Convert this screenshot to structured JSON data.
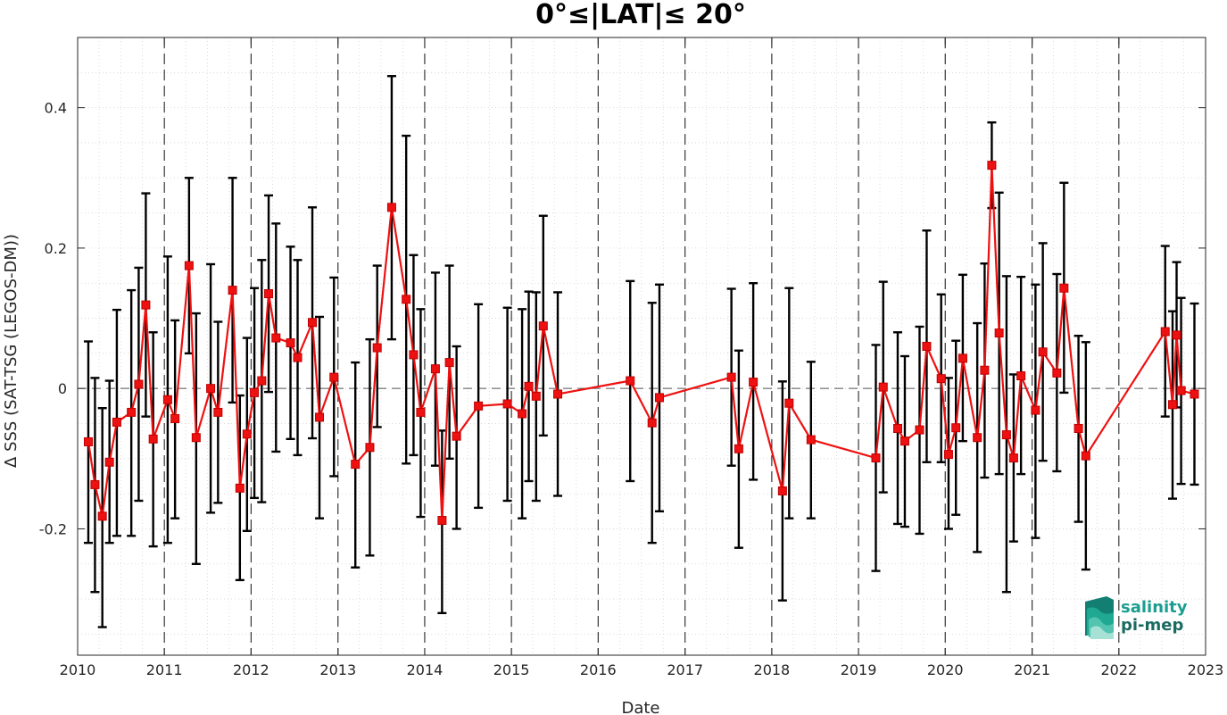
{
  "chart_data": {
    "type": "line",
    "title": "0°≤|LAT|≤ 20°",
    "xlabel": "Date",
    "ylabel": "Δ SSS (SAT-TSG (LEGOS-DM))",
    "xlim": [
      "2010-01-01",
      "2023-01-01"
    ],
    "ylim": [
      -0.38,
      0.5
    ],
    "x_tick_labels": [
      "2010",
      "2011",
      "2012",
      "2013",
      "2014",
      "2015",
      "2016",
      "2017",
      "2018",
      "2019",
      "2020",
      "2021",
      "2022",
      "2023"
    ],
    "y_ticks": [
      -0.2,
      0,
      0.2,
      0.4
    ],
    "y_tick_labels": [
      "-0.2",
      "0",
      "0.2",
      "0.4"
    ],
    "grid": "dotted",
    "reference_line": 0,
    "year_separators": [
      "2011",
      "2012",
      "2013",
      "2014",
      "2015",
      "2016",
      "2017",
      "2018",
      "2019",
      "2020",
      "2021",
      "2022"
    ],
    "series": [
      {
        "color": "#ee1111",
        "marker": "square",
        "errorbar_color": "#000000",
        "points": [
          {
            "x": "2010-02-15",
            "y": -0.076,
            "lo": -0.22,
            "hi": 0.067
          },
          {
            "x": "2010-03-15",
            "y": -0.137,
            "lo": -0.29,
            "hi": 0.015
          },
          {
            "x": "2010-04-15",
            "y": -0.182,
            "lo": -0.34,
            "hi": -0.028
          },
          {
            "x": "2010-05-15",
            "y": -0.105,
            "lo": -0.22,
            "hi": 0.011
          },
          {
            "x": "2010-06-15",
            "y": -0.048,
            "lo": -0.21,
            "hi": 0.112
          },
          {
            "x": "2010-08-15",
            "y": -0.034,
            "lo": -0.21,
            "hi": 0.14
          },
          {
            "x": "2010-09-15",
            "y": 0.006,
            "lo": -0.16,
            "hi": 0.172
          },
          {
            "x": "2010-10-15",
            "y": 0.119,
            "lo": -0.04,
            "hi": 0.278
          },
          {
            "x": "2010-11-15",
            "y": -0.072,
            "lo": -0.225,
            "hi": 0.08
          },
          {
            "x": "2011-01-15",
            "y": -0.016,
            "lo": -0.22,
            "hi": 0.188
          },
          {
            "x": "2011-02-15",
            "y": -0.043,
            "lo": -0.185,
            "hi": 0.097
          },
          {
            "x": "2011-04-15",
            "y": 0.175,
            "lo": 0.05,
            "hi": 0.3
          },
          {
            "x": "2011-05-15",
            "y": -0.07,
            "lo": -0.25,
            "hi": 0.107
          },
          {
            "x": "2011-07-15",
            "y": 0.0,
            "lo": -0.177,
            "hi": 0.177
          },
          {
            "x": "2011-08-15",
            "y": -0.034,
            "lo": -0.163,
            "hi": 0.095
          },
          {
            "x": "2011-10-15",
            "y": 0.14,
            "lo": -0.02,
            "hi": 0.3
          },
          {
            "x": "2011-11-15",
            "y": -0.142,
            "lo": -0.273,
            "hi": -0.01
          },
          {
            "x": "2011-12-15",
            "y": -0.065,
            "lo": -0.203,
            "hi": 0.072
          },
          {
            "x": "2012-01-15",
            "y": -0.006,
            "lo": -0.156,
            "hi": 0.143
          },
          {
            "x": "2012-02-15",
            "y": 0.011,
            "lo": -0.162,
            "hi": 0.183
          },
          {
            "x": "2012-03-15",
            "y": 0.135,
            "lo": -0.005,
            "hi": 0.275
          },
          {
            "x": "2012-04-15",
            "y": 0.072,
            "lo": -0.09,
            "hi": 0.235
          },
          {
            "x": "2012-06-15",
            "y": 0.065,
            "lo": -0.072,
            "hi": 0.202
          },
          {
            "x": "2012-07-15",
            "y": 0.044,
            "lo": -0.095,
            "hi": 0.183
          },
          {
            "x": "2012-09-15",
            "y": 0.094,
            "lo": -0.071,
            "hi": 0.258
          },
          {
            "x": "2012-10-15",
            "y": -0.041,
            "lo": -0.185,
            "hi": 0.102
          },
          {
            "x": "2012-12-15",
            "y": 0.016,
            "lo": -0.125,
            "hi": 0.158
          },
          {
            "x": "2013-03-15",
            "y": -0.108,
            "lo": -0.255,
            "hi": 0.037
          },
          {
            "x": "2013-05-15",
            "y": -0.084,
            "lo": -0.238,
            "hi": 0.07
          },
          {
            "x": "2013-06-15",
            "y": 0.058,
            "lo": -0.055,
            "hi": 0.175
          },
          {
            "x": "2013-08-15",
            "y": 0.258,
            "lo": 0.07,
            "hi": 0.445
          },
          {
            "x": "2013-10-15",
            "y": 0.127,
            "lo": -0.107,
            "hi": 0.36
          },
          {
            "x": "2013-11-15",
            "y": 0.048,
            "lo": -0.095,
            "hi": 0.19
          },
          {
            "x": "2013-12-15",
            "y": -0.034,
            "lo": -0.183,
            "hi": 0.113
          },
          {
            "x": "2014-02-15",
            "y": 0.028,
            "lo": -0.11,
            "hi": 0.165
          },
          {
            "x": "2014-03-15",
            "y": -0.188,
            "lo": -0.32,
            "hi": -0.06
          },
          {
            "x": "2014-04-15",
            "y": 0.037,
            "lo": -0.1,
            "hi": 0.175
          },
          {
            "x": "2014-05-15",
            "y": -0.068,
            "lo": -0.2,
            "hi": 0.06
          },
          {
            "x": "2014-08-15",
            "y": -0.025,
            "lo": -0.17,
            "hi": 0.12
          },
          {
            "x": "2014-12-15",
            "y": -0.022,
            "lo": -0.16,
            "hi": 0.115
          },
          {
            "x": "2015-02-15",
            "y": -0.036,
            "lo": -0.185,
            "hi": 0.113
          },
          {
            "x": "2015-03-15",
            "y": 0.003,
            "lo": -0.132,
            "hi": 0.138
          },
          {
            "x": "2015-04-15",
            "y": -0.011,
            "lo": -0.16,
            "hi": 0.137
          },
          {
            "x": "2015-05-15",
            "y": 0.089,
            "lo": -0.067,
            "hi": 0.246
          },
          {
            "x": "2015-07-15",
            "y": -0.008,
            "lo": -0.153,
            "hi": 0.137
          },
          {
            "x": "2016-05-15",
            "y": 0.011,
            "lo": -0.132,
            "hi": 0.153
          },
          {
            "x": "2016-08-15",
            "y": -0.049,
            "lo": -0.22,
            "hi": 0.122
          },
          {
            "x": "2016-09-15",
            "y": -0.013,
            "lo": -0.175,
            "hi": 0.148
          },
          {
            "x": "2017-07-15",
            "y": 0.016,
            "lo": -0.11,
            "hi": 0.142
          },
          {
            "x": "2017-08-15",
            "y": -0.086,
            "lo": -0.227,
            "hi": 0.054
          },
          {
            "x": "2017-10-15",
            "y": 0.009,
            "lo": -0.13,
            "hi": 0.15
          },
          {
            "x": "2018-02-15",
            "y": -0.146,
            "lo": -0.302,
            "hi": 0.01
          },
          {
            "x": "2018-03-15",
            "y": -0.021,
            "lo": -0.185,
            "hi": 0.143
          },
          {
            "x": "2018-06-15",
            "y": -0.073,
            "lo": -0.185,
            "hi": 0.038
          },
          {
            "x": "2019-03-15",
            "y": -0.099,
            "lo": -0.26,
            "hi": 0.062
          },
          {
            "x": "2019-04-15",
            "y": 0.002,
            "lo": -0.148,
            "hi": 0.152
          },
          {
            "x": "2019-06-15",
            "y": -0.057,
            "lo": -0.193,
            "hi": 0.08
          },
          {
            "x": "2019-07-15",
            "y": -0.075,
            "lo": -0.197,
            "hi": 0.046
          },
          {
            "x": "2019-09-15",
            "y": -0.059,
            "lo": -0.207,
            "hi": 0.088
          },
          {
            "x": "2019-10-15",
            "y": 0.06,
            "lo": -0.105,
            "hi": 0.225
          },
          {
            "x": "2019-12-15",
            "y": 0.014,
            "lo": -0.105,
            "hi": 0.134
          },
          {
            "x": "2020-01-15",
            "y": -0.094,
            "lo": -0.2,
            "hi": 0.015
          },
          {
            "x": "2020-02-15",
            "y": -0.056,
            "lo": -0.18,
            "hi": 0.068
          },
          {
            "x": "2020-03-15",
            "y": 0.043,
            "lo": -0.075,
            "hi": 0.162
          },
          {
            "x": "2020-05-15",
            "y": -0.07,
            "lo": -0.233,
            "hi": 0.093
          },
          {
            "x": "2020-06-15",
            "y": 0.026,
            "lo": -0.127,
            "hi": 0.178
          },
          {
            "x": "2020-07-15",
            "y": 0.318,
            "lo": 0.257,
            "hi": 0.379
          },
          {
            "x": "2020-08-15",
            "y": 0.079,
            "lo": -0.122,
            "hi": 0.279
          },
          {
            "x": "2020-09-15",
            "y": -0.066,
            "lo": -0.29,
            "hi": 0.16
          },
          {
            "x": "2020-10-15",
            "y": -0.099,
            "lo": -0.218,
            "hi": 0.02
          },
          {
            "x": "2020-11-15",
            "y": 0.018,
            "lo": -0.122,
            "hi": 0.159
          },
          {
            "x": "2021-01-15",
            "y": -0.031,
            "lo": -0.213,
            "hi": 0.148
          },
          {
            "x": "2021-02-15",
            "y": 0.052,
            "lo": -0.103,
            "hi": 0.207
          },
          {
            "x": "2021-04-15",
            "y": 0.022,
            "lo": -0.118,
            "hi": 0.163
          },
          {
            "x": "2021-05-15",
            "y": 0.143,
            "lo": -0.006,
            "hi": 0.293
          },
          {
            "x": "2021-07-15",
            "y": -0.057,
            "lo": -0.19,
            "hi": 0.075
          },
          {
            "x": "2021-08-15",
            "y": -0.096,
            "lo": -0.258,
            "hi": 0.066
          },
          {
            "x": "2022-07-15",
            "y": 0.081,
            "lo": -0.04,
            "hi": 0.203
          },
          {
            "x": "2022-08-15",
            "y": -0.023,
            "lo": -0.157,
            "hi": 0.11
          },
          {
            "x": "2022-09-01",
            "y": 0.076,
            "lo": -0.027,
            "hi": 0.18
          },
          {
            "x": "2022-09-20",
            "y": -0.003,
            "lo": -0.136,
            "hi": 0.129
          },
          {
            "x": "2022-11-15",
            "y": -0.008,
            "lo": -0.137,
            "hi": 0.121
          }
        ]
      }
    ]
  },
  "logo": {
    "line1": "salinity",
    "line2": "pi-mep",
    "color": "#1a9e8f"
  }
}
